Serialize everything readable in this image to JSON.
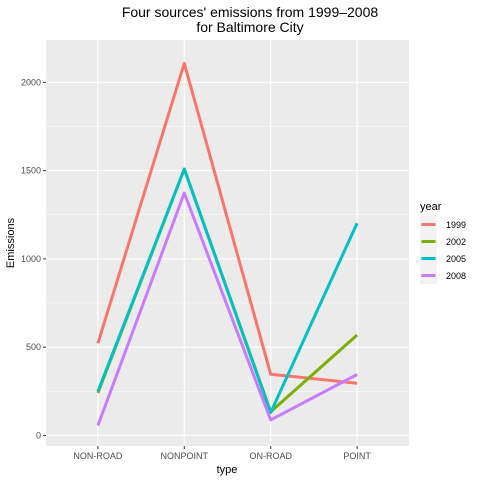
{
  "chart_data": {
    "type": "line",
    "title_line1": "Four sources' emissions from 1999–2008",
    "title_line2": "for Baltimore City",
    "xlabel": "type",
    "ylabel": "Emissions",
    "categories": [
      "NON-ROAD",
      "NONPOINT",
      "ON-ROAD",
      "POINT"
    ],
    "ylim": [
      -60,
      2240
    ],
    "yticks": [
      0,
      500,
      1000,
      1500,
      2000
    ],
    "ytick_labels": [
      "0",
      "500",
      "1000",
      "1500",
      "2000"
    ],
    "grid": true,
    "legend": {
      "title": "year",
      "position": "right"
    },
    "series": [
      {
        "name": "1999",
        "color": "#F8766D",
        "values": [
          522,
          2108,
          347,
          296
        ]
      },
      {
        "name": "2002",
        "color": "#7CAE00",
        "values": [
          241,
          1509,
          134,
          569
        ]
      },
      {
        "name": "2005",
        "color": "#00BFC4",
        "values": [
          249,
          1509,
          130,
          1202
        ]
      },
      {
        "name": "2008",
        "color": "#C77CFF",
        "values": [
          56,
          1373,
          88,
          345
        ]
      }
    ]
  }
}
